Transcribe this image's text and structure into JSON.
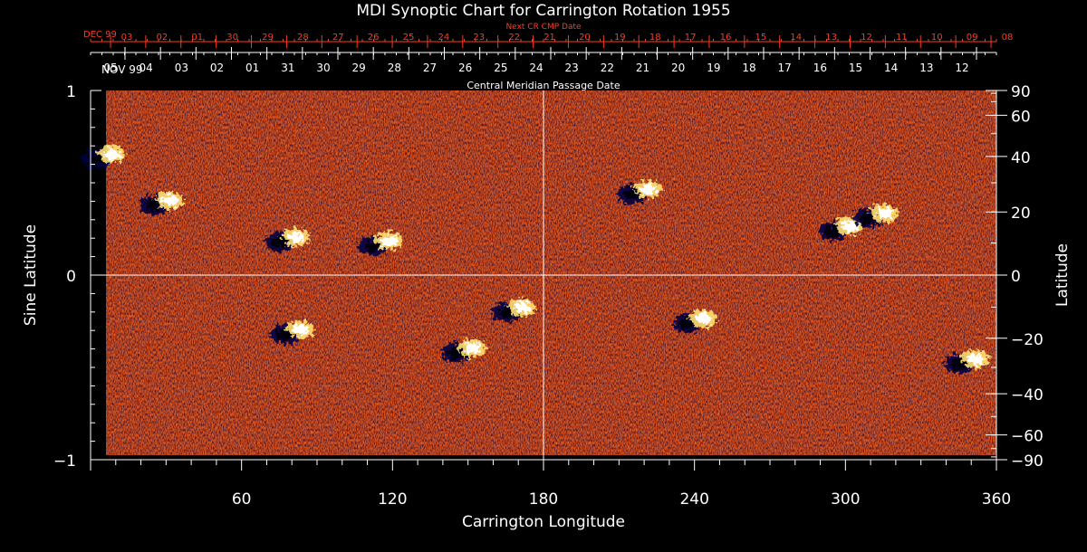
{
  "chart_data": {
    "type": "heatmap",
    "title": "MDI Synoptic Chart for Carrington Rotation 1955",
    "xlabel": "Carrington Longitude",
    "ylabel_left": "Sine Latitude",
    "ylabel_right": "Latitude",
    "xlim": [
      0,
      360
    ],
    "ylim": [
      -1,
      1
    ],
    "x_ticks": [
      60,
      120,
      180,
      240,
      300,
      360
    ],
    "y_ticks_left": [
      {
        "value": 1,
        "label": "1"
      },
      {
        "value": 0,
        "label": "0"
      },
      {
        "value": -1,
        "label": "−1"
      }
    ],
    "y_ticks_right": [
      {
        "deg": 90,
        "label": "90"
      },
      {
        "deg": 60,
        "label": "60"
      },
      {
        "deg": 40,
        "label": "40"
      },
      {
        "deg": 20,
        "label": "20"
      },
      {
        "deg": 0,
        "label": "0"
      },
      {
        "deg": -20,
        "label": "−20"
      },
      {
        "deg": -40,
        "label": "−40"
      },
      {
        "deg": -60,
        "label": "−60"
      },
      {
        "deg": -90,
        "label": "−90"
      }
    ],
    "top_axis_red": {
      "title": "Next CR CMP Date",
      "month_label": "DEC 99",
      "ticks": [
        {
          "lon": 360,
          "label": "03"
        },
        {
          "lon": 346.5,
          "label": "02"
        },
        {
          "lon": 333,
          "label": "01"
        },
        {
          "lon": 319.5,
          "label": "30"
        },
        {
          "lon": 306,
          "label": "29"
        },
        {
          "lon": 292.5,
          "label": "28"
        },
        {
          "lon": 279,
          "label": "27"
        },
        {
          "lon": 265.5,
          "label": "26"
        },
        {
          "lon": 252,
          "label": "25"
        },
        {
          "lon": 238.5,
          "label": "24"
        },
        {
          "lon": 225,
          "label": "23"
        },
        {
          "lon": 211.5,
          "label": "22"
        },
        {
          "lon": 198,
          "label": "21"
        },
        {
          "lon": 184.5,
          "label": "20"
        },
        {
          "lon": 171,
          "label": "19"
        },
        {
          "lon": 157.5,
          "label": "18"
        },
        {
          "lon": 144,
          "label": "17"
        },
        {
          "lon": 130.5,
          "label": "16"
        },
        {
          "lon": 117,
          "label": "15"
        },
        {
          "lon": 103.5,
          "label": "14"
        },
        {
          "lon": 90,
          "label": "13"
        },
        {
          "lon": 76.5,
          "label": "12"
        },
        {
          "lon": 63,
          "label": "11"
        },
        {
          "lon": 49.5,
          "label": "10"
        },
        {
          "lon": 36,
          "label": "09"
        },
        {
          "lon": 22.5,
          "label": "08"
        }
      ]
    },
    "top_axis_white": {
      "title": "Central Meridian Passage Date",
      "month_label": "NOV 99",
      "ticks": [
        {
          "lon": 357,
          "label": "05"
        },
        {
          "lon": 343.5,
          "label": "04"
        },
        {
          "lon": 330,
          "label": "03"
        },
        {
          "lon": 316.5,
          "label": "02"
        },
        {
          "lon": 303,
          "label": "01"
        },
        {
          "lon": 289.5,
          "label": "31"
        },
        {
          "lon": 276,
          "label": "30"
        },
        {
          "lon": 262.5,
          "label": "29"
        },
        {
          "lon": 249,
          "label": "28"
        },
        {
          "lon": 235.5,
          "label": "27"
        },
        {
          "lon": 222,
          "label": "26"
        },
        {
          "lon": 208.5,
          "label": "25"
        },
        {
          "lon": 195,
          "label": "24"
        },
        {
          "lon": 181.5,
          "label": "23"
        },
        {
          "lon": 168,
          "label": "22"
        },
        {
          "lon": 154.5,
          "label": "21"
        },
        {
          "lon": 141,
          "label": "20"
        },
        {
          "lon": 127.5,
          "label": "19"
        },
        {
          "lon": 114,
          "label": "18"
        },
        {
          "lon": 100.5,
          "label": "17"
        },
        {
          "lon": 87,
          "label": "16"
        },
        {
          "lon": 73.5,
          "label": "15"
        },
        {
          "lon": 60,
          "label": "14"
        },
        {
          "lon": 46.5,
          "label": "13"
        },
        {
          "lon": 33,
          "label": "12"
        }
      ]
    },
    "active_regions": [
      {
        "lon": 5,
        "sinlat": 0.64,
        "polarity": "mixed"
      },
      {
        "lon": 28,
        "sinlat": 0.39,
        "polarity": "mixed"
      },
      {
        "lon": 78,
        "sinlat": 0.19,
        "polarity": "mixed"
      },
      {
        "lon": 115,
        "sinlat": 0.17,
        "polarity": "mixed"
      },
      {
        "lon": 80,
        "sinlat": -0.31,
        "polarity": "mixed"
      },
      {
        "lon": 148,
        "sinlat": -0.41,
        "polarity": "mixed"
      },
      {
        "lon": 168,
        "sinlat": -0.19,
        "polarity": "mixed"
      },
      {
        "lon": 240,
        "sinlat": -0.25,
        "polarity": "mixed"
      },
      {
        "lon": 218,
        "sinlat": 0.45,
        "polarity": "mixed"
      },
      {
        "lon": 298,
        "sinlat": 0.25,
        "polarity": "mixed"
      },
      {
        "lon": 312,
        "sinlat": 0.32,
        "polarity": "mixed"
      },
      {
        "lon": 348,
        "sinlat": -0.47,
        "polarity": "mixed"
      }
    ],
    "colors": {
      "background": "#000000",
      "field_base": "#e04f16",
      "positive": "#ffffff",
      "positive_mid": "#ffe070",
      "negative": "#000044",
      "grid": "#ffffff",
      "red_axis": "#ff3a20",
      "axis": "#ffffff"
    }
  }
}
